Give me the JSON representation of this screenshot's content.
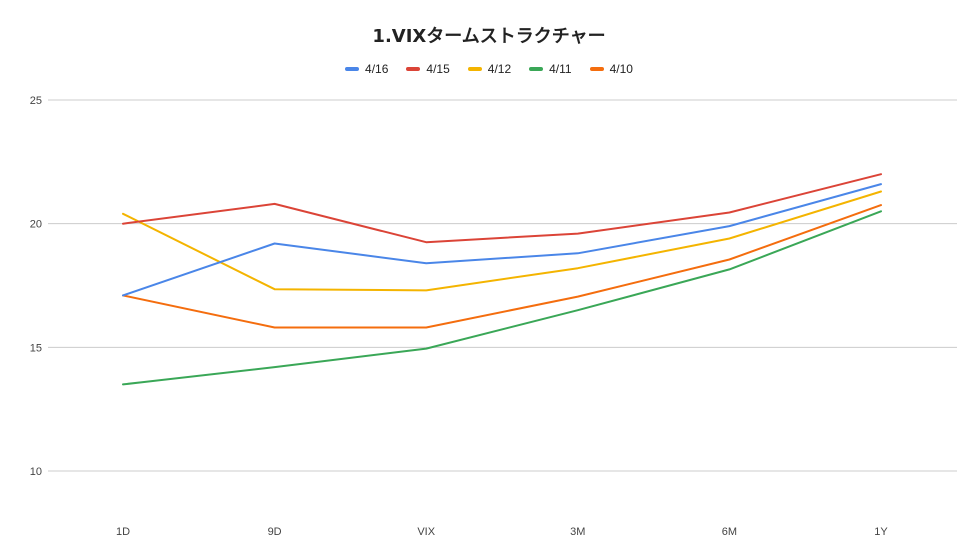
{
  "chart_data": {
    "type": "line",
    "title": "1.VIXタームストラクチャー",
    "categories": [
      "1D",
      "9D",
      "VIX",
      "3M",
      "6M",
      "1Y"
    ],
    "ylim": [
      10,
      25
    ],
    "yticks": [
      10,
      15,
      20,
      25
    ],
    "grid": true,
    "legend_position": "top",
    "series": [
      {
        "name": "4/16",
        "color": "#4a86e8",
        "values": [
          17.1,
          19.2,
          18.4,
          18.8,
          19.9,
          21.6
        ]
      },
      {
        "name": "4/15",
        "color": "#db4437",
        "values": [
          20.0,
          20.8,
          19.25,
          19.6,
          20.45,
          22.0
        ]
      },
      {
        "name": "4/12",
        "color": "#f4b400",
        "values": [
          20.4,
          17.35,
          17.3,
          18.2,
          19.4,
          21.3
        ]
      },
      {
        "name": "4/11",
        "color": "#3aa757",
        "values": [
          13.5,
          14.2,
          14.95,
          16.5,
          18.15,
          20.5
        ]
      },
      {
        "name": "4/10",
        "color": "#f46d0e",
        "values": [
          17.1,
          15.8,
          15.8,
          17.05,
          18.55,
          20.75
        ]
      }
    ]
  }
}
